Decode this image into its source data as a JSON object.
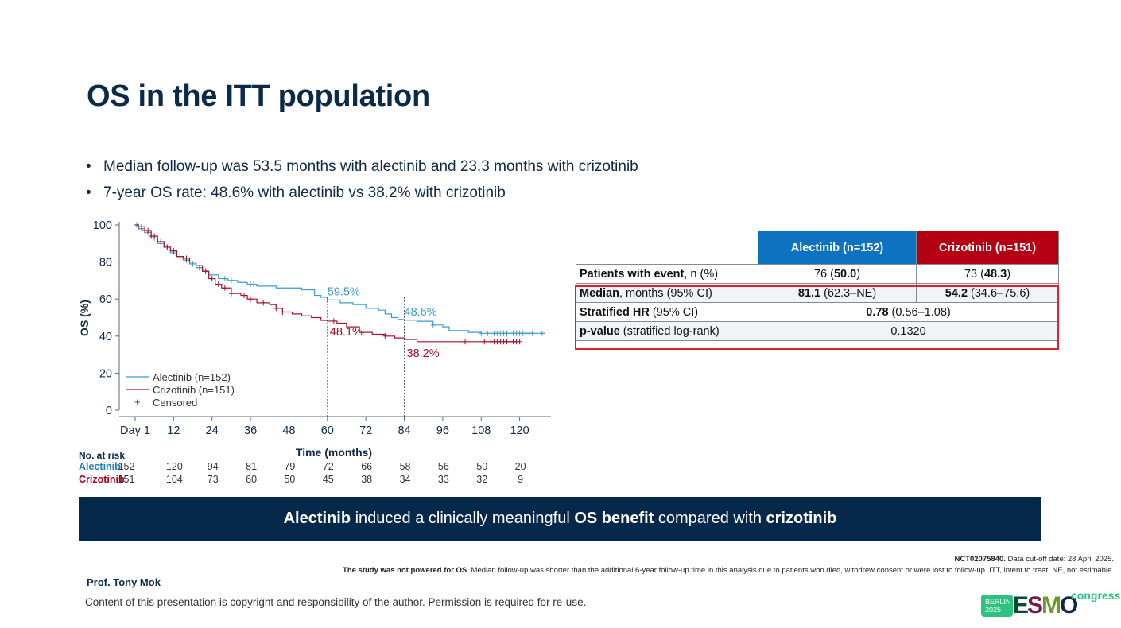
{
  "slide": {
    "title": "OS in the ITT population",
    "bullets": [
      "Median follow-up was 53.5 months with alectinib and 23.3 months with crizotinib",
      "7-year OS rate: 48.6% with alectinib vs 38.2% with crizotinib"
    ],
    "bullet_glyph": "•"
  },
  "chart_data": {
    "type": "line",
    "subtype": "kaplan-meier",
    "xlabel": "Time (months)",
    "ylabel": "OS (%)",
    "xlim": [
      0,
      128
    ],
    "ylim": [
      0,
      100
    ],
    "x_ticks": [
      0,
      12,
      24,
      36,
      48,
      60,
      72,
      84,
      96,
      108,
      120
    ],
    "x_tick_labels": [
      "Day 1",
      "12",
      "24",
      "36",
      "48",
      "60",
      "72",
      "84",
      "96",
      "108",
      "120"
    ],
    "y_ticks": [
      0,
      20,
      40,
      60,
      80,
      100
    ],
    "y_tick_labels": [
      "0",
      "20",
      "40",
      "60",
      "80",
      "100"
    ],
    "grid": false,
    "legend": {
      "placement": "bottom-left",
      "entries": [
        "Alectinib (n=152)",
        "Crizotinib (n=151)",
        "Censored"
      ],
      "censored_glyph": "+"
    },
    "reference_lines_x": [
      60,
      84
    ],
    "annotations": [
      {
        "series": "Alectinib",
        "x": 60,
        "y": 59.5,
        "text": "59.5%"
      },
      {
        "series": "Crizotinib",
        "x": 60,
        "y": 48.1,
        "text": "48.1%"
      },
      {
        "series": "Alectinib",
        "x": 84,
        "y": 48.6,
        "text": "48.6%"
      },
      {
        "series": "Crizotinib",
        "x": 84,
        "y": 38.2,
        "text": "38.2%"
      }
    ],
    "series": [
      {
        "name": "Alectinib (n=152)",
        "color": "#3a9ccf",
        "points": [
          [
            0,
            100
          ],
          [
            1,
            98
          ],
          [
            3,
            96
          ],
          [
            5,
            93
          ],
          [
            7,
            90
          ],
          [
            9,
            88
          ],
          [
            11,
            85
          ],
          [
            13,
            83
          ],
          [
            15,
            81
          ],
          [
            17,
            79
          ],
          [
            19,
            77
          ],
          [
            21,
            75
          ],
          [
            23,
            73
          ],
          [
            26,
            71
          ],
          [
            29,
            70
          ],
          [
            32,
            69
          ],
          [
            35,
            68
          ],
          [
            38,
            67
          ],
          [
            44,
            66
          ],
          [
            48,
            66
          ],
          [
            52,
            65
          ],
          [
            56,
            62
          ],
          [
            58,
            61
          ],
          [
            60,
            59.5
          ],
          [
            64,
            58
          ],
          [
            68,
            57
          ],
          [
            72,
            55
          ],
          [
            76,
            54
          ],
          [
            78,
            52
          ],
          [
            80,
            50
          ],
          [
            82,
            49
          ],
          [
            84,
            48.6
          ],
          [
            88,
            48
          ],
          [
            93,
            46
          ],
          [
            96,
            45
          ],
          [
            98,
            43
          ],
          [
            104,
            42
          ],
          [
            108,
            41.5
          ],
          [
            128,
            41.5
          ]
        ],
        "censored": [
          0.5,
          2,
          4,
          6,
          10,
          14,
          16,
          18,
          20,
          22,
          28,
          30,
          36,
          37,
          60,
          93,
          108,
          110,
          112,
          113,
          114,
          115,
          116,
          117,
          118,
          119,
          120,
          121,
          122,
          123,
          124,
          127
        ]
      },
      {
        "name": "Crizotinib (n=151)",
        "color": "#a8102a",
        "points": [
          [
            0,
            100
          ],
          [
            1,
            99
          ],
          [
            3,
            97
          ],
          [
            5,
            94
          ],
          [
            7,
            91
          ],
          [
            9,
            88
          ],
          [
            11,
            86
          ],
          [
            13,
            83
          ],
          [
            15,
            82
          ],
          [
            17,
            80
          ],
          [
            19,
            78
          ],
          [
            21,
            75
          ],
          [
            23,
            71
          ],
          [
            25,
            68
          ],
          [
            27,
            66
          ],
          [
            30,
            63
          ],
          [
            33,
            62
          ],
          [
            35,
            60
          ],
          [
            38,
            58
          ],
          [
            42,
            57
          ],
          [
            44,
            55
          ],
          [
            46,
            53
          ],
          [
            49,
            52
          ],
          [
            52,
            51
          ],
          [
            55,
            50
          ],
          [
            58,
            48.5
          ],
          [
            60,
            48.1
          ],
          [
            63,
            47
          ],
          [
            66,
            45
          ],
          [
            70,
            42
          ],
          [
            74,
            41
          ],
          [
            78,
            40
          ],
          [
            81,
            39
          ],
          [
            84,
            38.2
          ],
          [
            88,
            37
          ],
          [
            108,
            37
          ],
          [
            120,
            37
          ]
        ],
        "censored": [
          1,
          2,
          3,
          4,
          5,
          6,
          8,
          10,
          12,
          14,
          16,
          22,
          24,
          26,
          28,
          30,
          34,
          36,
          40,
          44,
          46,
          48,
          62,
          78,
          103,
          109,
          111,
          112,
          113,
          114,
          115,
          116,
          117,
          118,
          119,
          120
        ]
      }
    ],
    "risk_table": {
      "header": "No. at risk",
      "rows": [
        {
          "label": "Alectinib",
          "color": "#1a7fc1",
          "values": [
            152,
            120,
            94,
            81,
            79,
            72,
            66,
            58,
            56,
            50,
            20
          ]
        },
        {
          "label": "Crizotinib",
          "color": "#a8001a",
          "values": [
            151,
            104,
            73,
            60,
            50,
            45,
            38,
            34,
            33,
            32,
            9
          ]
        }
      ]
    }
  },
  "summary_table": {
    "headers": [
      "",
      "Alectinib (n=152)",
      "Crizotinib (n=151)"
    ],
    "header_colors": {
      "alectinib": "#0d72c0",
      "crizotinib": "#b40012"
    },
    "rows": [
      {
        "label_bold": "Patients with event",
        "label_rest": ", n (%)",
        "alec_plain": "76 (",
        "alec_bold": "50.0",
        "alec_tail": ")",
        "criz_plain": "73 (",
        "criz_bold": "48.3",
        "criz_tail": ")"
      },
      {
        "label_bold": "Median",
        "label_rest": ", months (95% CI)",
        "alec_bold": "81.1",
        "alec_tail": " (62.3–NE)",
        "criz_bold": "54.2",
        "criz_tail": " (34.6–75.6)"
      },
      {
        "label_bold": "Stratified HR",
        "label_rest": " (95% CI)",
        "merged_bold": "0.78",
        "merged_tail": " (0.56–1.08)"
      },
      {
        "label_bold": "p-value",
        "label_rest": " (stratified log-rank)",
        "merged_plain": "0.1320"
      }
    ],
    "highlight_color": "#e0202a"
  },
  "banner": {
    "part1_bold": "Alectinib",
    "part2": " induced a clinically meaningful ",
    "part3_bold": "OS benefit",
    "part4": " compared with ",
    "part5_bold": "crizotinib"
  },
  "footnotes": {
    "line1_bold": "NCT02075840.",
    "line1_rest": " Data cut-off date: 28 April 2025.",
    "line2_bold": "The study was not powered for OS",
    "line2_rest": ". Median follow-up was shorter than the additional 6-year follow-up time in this analysis due to patients who died, withdrew consent or were lost to follow-up. ITT, intent to treat; NE, not estimable."
  },
  "presenter": "Prof. Tony Mok",
  "copyright": "Content of this presentation is copyright and responsibility of the author. Permission is required for re-use.",
  "logo": {
    "city_line1": "BERLIN",
    "city_line2": "2025",
    "letters": [
      "E",
      "S",
      "M",
      "O"
    ],
    "letter_colors": [
      "#0a4d2e",
      "#7a1a4a",
      "#6b9a2a",
      "#0b2a4a"
    ],
    "suffix": "congress"
  }
}
